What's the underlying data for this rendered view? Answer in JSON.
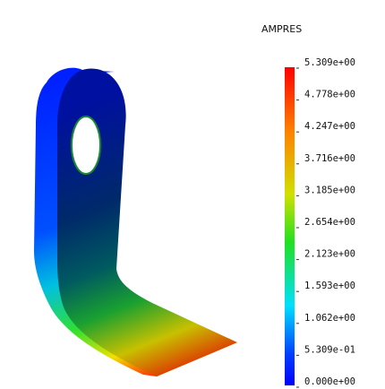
{
  "legend": {
    "title": "AMPRES",
    "labels": [
      "5.309e+00",
      "4.778e+00",
      "4.247e+00",
      "3.716e+00",
      "3.185e+00",
      "2.654e+00",
      "2.123e+00",
      "1.593e+00",
      "1.062e+00",
      "5.309e-01",
      "0.000e+00"
    ]
  }
}
